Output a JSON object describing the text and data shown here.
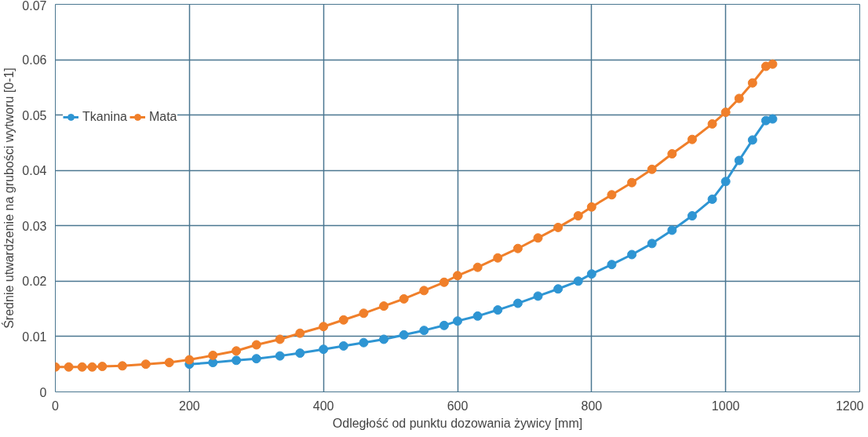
{
  "chart_data": {
    "type": "line",
    "xlabel": "Odległość od punktu dozowania żywicy [mm]",
    "ylabel": "Średnie utwardzenie na grubości wytworu [0-1]",
    "xlim": [
      0,
      1200
    ],
    "xticks": [
      0,
      200,
      400,
      600,
      800,
      1000,
      1200
    ],
    "ylim": [
      0,
      0.07
    ],
    "yticks": [
      0,
      0.01,
      0.02,
      0.03,
      0.04,
      0.05,
      0.06,
      0.07
    ],
    "grid": true,
    "legend": "top left",
    "marker": "circle",
    "line_style": "solid",
    "x": [
      0,
      20,
      40,
      55,
      70,
      100,
      135,
      170,
      200,
      235,
      270,
      300,
      335,
      365,
      400,
      430,
      460,
      490,
      520,
      550,
      580,
      600,
      630,
      660,
      690,
      720,
      750,
      780,
      800,
      830,
      860,
      890,
      920,
      950,
      980,
      1000,
      1020,
      1040,
      1060,
      1070
    ],
    "series": [
      {
        "name": "Tkanina",
        "color": "#2e95d3",
        "values": [
          null,
          null,
          null,
          null,
          null,
          null,
          null,
          null,
          0.005,
          0.0053,
          0.0057,
          0.006,
          0.0065,
          0.007,
          0.0077,
          0.0083,
          0.0089,
          0.0095,
          0.0103,
          0.0111,
          0.012,
          0.0128,
          0.0137,
          0.0148,
          0.016,
          0.0173,
          0.0186,
          0.02,
          0.0213,
          0.023,
          0.0248,
          0.0268,
          0.0292,
          0.0318,
          0.0348,
          0.038,
          0.0418,
          0.0455,
          0.049,
          0.0493
        ]
      },
      {
        "name": "Mata",
        "color": "#f07f2a",
        "values": [
          0.0045,
          0.0045,
          0.0045,
          0.0045,
          0.0046,
          0.0047,
          0.005,
          0.0053,
          0.0058,
          0.0066,
          0.0074,
          0.0085,
          0.0095,
          0.0106,
          0.0118,
          0.013,
          0.0142,
          0.0155,
          0.0168,
          0.0183,
          0.0198,
          0.021,
          0.0225,
          0.0242,
          0.0259,
          0.0278,
          0.0297,
          0.0318,
          0.0334,
          0.0356,
          0.0378,
          0.0402,
          0.043,
          0.0456,
          0.0484,
          0.0505,
          0.053,
          0.0558,
          0.0588,
          0.0592
        ]
      }
    ]
  }
}
